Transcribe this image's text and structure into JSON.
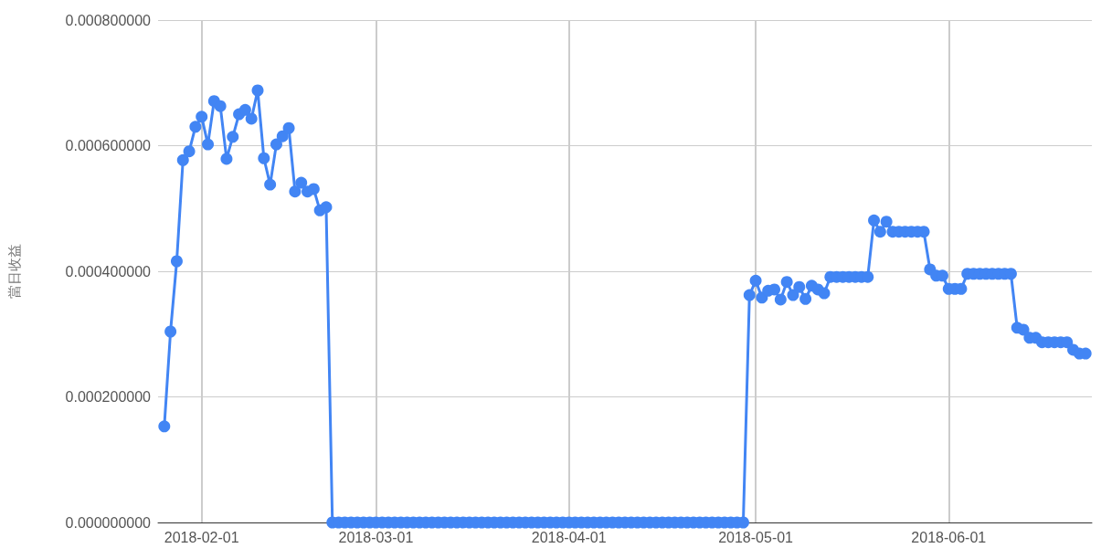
{
  "chart_data": {
    "type": "line",
    "ylabel": "當日收益",
    "x": [
      "2018-01-26",
      "2018-01-27",
      "2018-01-28",
      "2018-01-29",
      "2018-01-30",
      "2018-01-31",
      "2018-02-01",
      "2018-02-02",
      "2018-02-03",
      "2018-02-04",
      "2018-02-05",
      "2018-02-06",
      "2018-02-07",
      "2018-02-08",
      "2018-02-09",
      "2018-02-10",
      "2018-02-11",
      "2018-02-12",
      "2018-02-13",
      "2018-02-14",
      "2018-02-15",
      "2018-02-16",
      "2018-02-17",
      "2018-02-18",
      "2018-02-19",
      "2018-02-20",
      "2018-02-21",
      "2018-02-22",
      "2018-02-23",
      "2018-02-24",
      "2018-02-25",
      "2018-02-26",
      "2018-02-27",
      "2018-02-28",
      "2018-03-01",
      "2018-03-02",
      "2018-03-03",
      "2018-03-04",
      "2018-03-05",
      "2018-03-06",
      "2018-03-07",
      "2018-03-08",
      "2018-03-09",
      "2018-03-10",
      "2018-03-11",
      "2018-03-12",
      "2018-03-13",
      "2018-03-14",
      "2018-03-15",
      "2018-03-16",
      "2018-03-17",
      "2018-03-18",
      "2018-03-19",
      "2018-03-20",
      "2018-03-21",
      "2018-03-22",
      "2018-03-23",
      "2018-03-24",
      "2018-03-25",
      "2018-03-26",
      "2018-03-27",
      "2018-03-28",
      "2018-03-29",
      "2018-03-30",
      "2018-03-31",
      "2018-04-01",
      "2018-04-02",
      "2018-04-03",
      "2018-04-04",
      "2018-04-05",
      "2018-04-06",
      "2018-04-07",
      "2018-04-08",
      "2018-04-09",
      "2018-04-10",
      "2018-04-11",
      "2018-04-12",
      "2018-04-13",
      "2018-04-14",
      "2018-04-15",
      "2018-04-16",
      "2018-04-17",
      "2018-04-18",
      "2018-04-19",
      "2018-04-20",
      "2018-04-21",
      "2018-04-22",
      "2018-04-23",
      "2018-04-24",
      "2018-04-25",
      "2018-04-26",
      "2018-04-27",
      "2018-04-28",
      "2018-04-29",
      "2018-04-30",
      "2018-05-01",
      "2018-05-02",
      "2018-05-03",
      "2018-05-04",
      "2018-05-05",
      "2018-05-06",
      "2018-05-07",
      "2018-05-08",
      "2018-05-09",
      "2018-05-10",
      "2018-05-11",
      "2018-05-12",
      "2018-05-13",
      "2018-05-14",
      "2018-05-15",
      "2018-05-16",
      "2018-05-17",
      "2018-05-18",
      "2018-05-19",
      "2018-05-20",
      "2018-05-21",
      "2018-05-22",
      "2018-05-23",
      "2018-05-24",
      "2018-05-25",
      "2018-05-26",
      "2018-05-27",
      "2018-05-28",
      "2018-05-29",
      "2018-05-30",
      "2018-05-31",
      "2018-06-01",
      "2018-06-02",
      "2018-06-03",
      "2018-06-04",
      "2018-06-05",
      "2018-06-06",
      "2018-06-07",
      "2018-06-08",
      "2018-06-09",
      "2018-06-10",
      "2018-06-11",
      "2018-06-12",
      "2018-06-13",
      "2018-06-14",
      "2018-06-15",
      "2018-06-16",
      "2018-06-17",
      "2018-06-18",
      "2018-06-19",
      "2018-06-20",
      "2018-06-21",
      "2018-06-22",
      "2018-06-23"
    ],
    "series": [
      {
        "color": "#4285f4",
        "values": [
          0.000153,
          0.000304,
          0.000416,
          0.000577,
          0.000591,
          0.00063,
          0.000646,
          0.000602,
          0.000671,
          0.000663,
          0.000579,
          0.000614,
          0.00065,
          0.000657,
          0.000643,
          0.000688,
          0.00058,
          0.000538,
          0.000602,
          0.000615,
          0.000628,
          0.000527,
          0.000541,
          0.000527,
          0.000531,
          0.000497,
          0.000502,
          0,
          0,
          0,
          0,
          0,
          0,
          0,
          0,
          0,
          0,
          0,
          0,
          0,
          0,
          0,
          0,
          0,
          0,
          0,
          0,
          0,
          0,
          0,
          0,
          0,
          0,
          0,
          0,
          0,
          0,
          0,
          0,
          0,
          0,
          0,
          0,
          0,
          0,
          0,
          0,
          0,
          0,
          0,
          0,
          0,
          0,
          0,
          0,
          0,
          0,
          0,
          0,
          0,
          0,
          0,
          0,
          0,
          0,
          0,
          0,
          0,
          0,
          0,
          0,
          0,
          0,
          0,
          0.000362,
          0.000385,
          0.000358,
          0.000369,
          0.000371,
          0.000355,
          0.000383,
          0.000362,
          0.000375,
          0.000356,
          0.000377,
          0.000371,
          0.000365,
          0.000391,
          0.000391,
          0.000391,
          0.000391,
          0.000391,
          0.000391,
          0.000391,
          0.000481,
          0.000463,
          0.000479,
          0.000463,
          0.000463,
          0.000463,
          0.000463,
          0.000463,
          0.000463,
          0.000403,
          0.000393,
          0.000393,
          0.000372,
          0.000372,
          0.000372,
          0.000396,
          0.000396,
          0.000396,
          0.000396,
          0.000396,
          0.000396,
          0.000396,
          0.000396,
          0.00031,
          0.000307,
          0.000294,
          0.000294,
          0.000287,
          0.000287,
          0.000287,
          0.000287,
          0.000287,
          0.000275,
          0.000269,
          0.000269
        ]
      }
    ],
    "xlim": [
      "2018-01-25",
      "2018-06-24"
    ],
    "xticks": [
      "2018-02-01",
      "2018-03-01",
      "2018-04-01",
      "2018-05-01",
      "2018-06-01"
    ],
    "ylim": [
      0,
      0.0008
    ],
    "yticks": [
      {
        "value": 0,
        "label": "0.000000000"
      },
      {
        "value": 0.0002,
        "label": "0.000200000"
      },
      {
        "value": 0.0004,
        "label": "0.000400000"
      },
      {
        "value": 0.0006,
        "label": "0.000600000"
      },
      {
        "value": 0.0008,
        "label": "0.000800000"
      }
    ],
    "grid": true,
    "marker": "circle",
    "line_style": "solid"
  }
}
